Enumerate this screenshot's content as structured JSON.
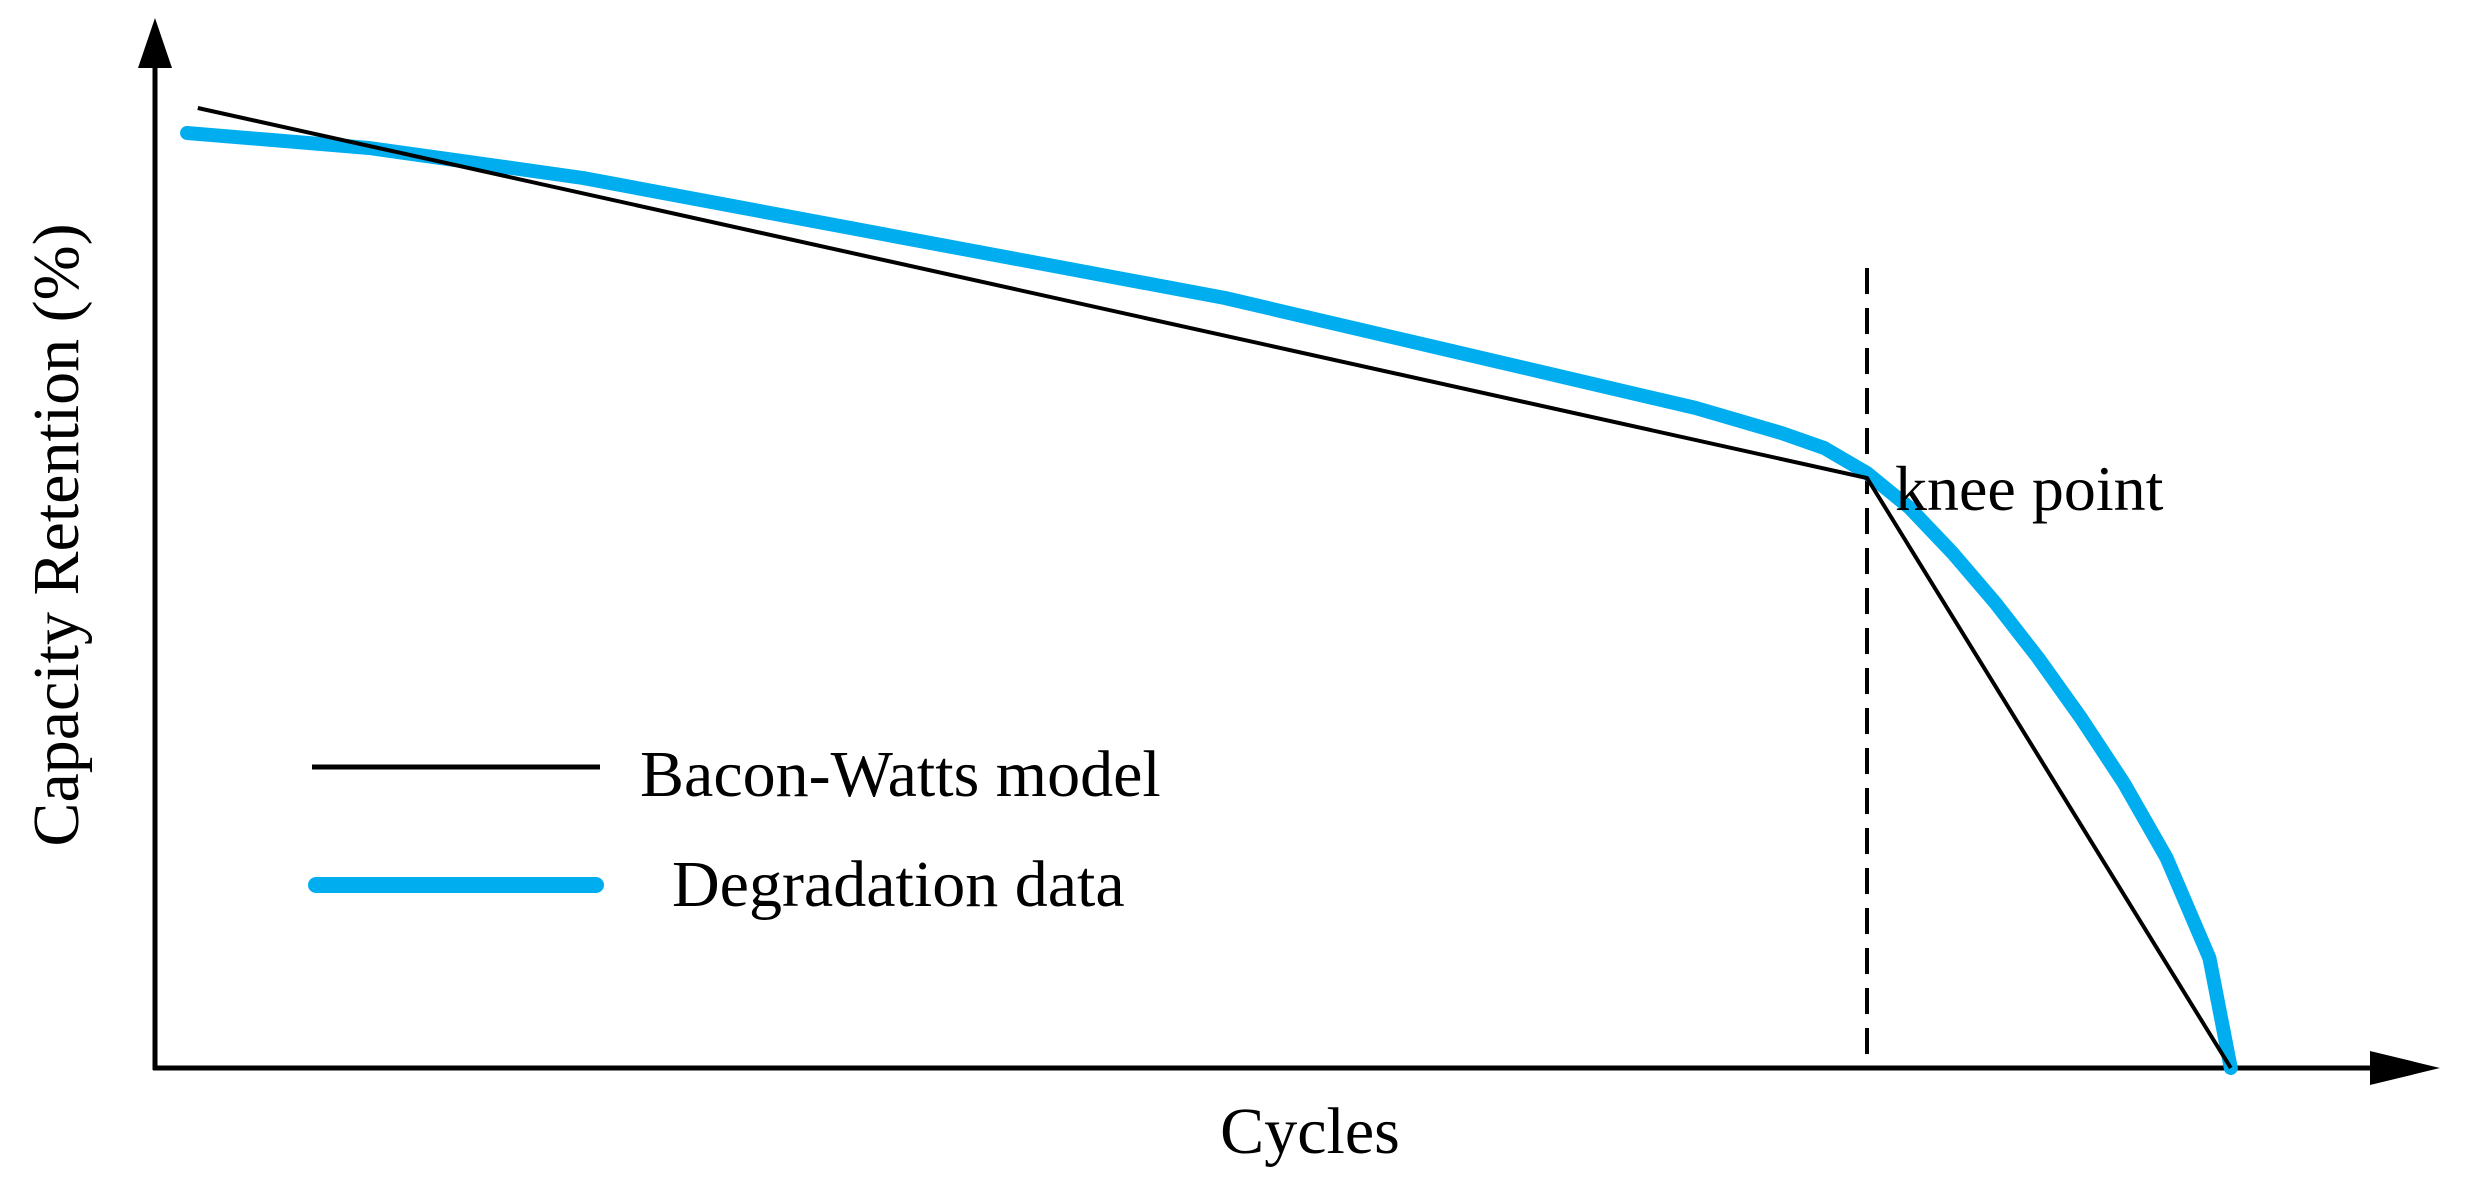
{
  "chart_data": {
    "type": "line",
    "title": "",
    "xlabel": "Cycles",
    "ylabel": "Capacity Retention (%)",
    "xlim": [
      0,
      100
    ],
    "ylim": [
      0,
      100
    ],
    "grid": false,
    "ticks": false,
    "legend_position": "bottom-left",
    "colors": {
      "model": "#000000",
      "data": "#00aeef",
      "axis": "#000000"
    },
    "series": [
      {
        "name": "Bacon-Watts model",
        "key": "model",
        "x": [
          2,
          80,
          97
        ],
        "y": [
          96,
          59,
          0
        ]
      },
      {
        "name": "Degradation data",
        "key": "data",
        "x": [
          1.5,
          10,
          20,
          30,
          40,
          50,
          60,
          66,
          72,
          76,
          78,
          80,
          82,
          84,
          86,
          88,
          90,
          92,
          94,
          96,
          97
        ],
        "y": [
          93.5,
          92,
          89,
          85,
          81,
          77,
          72,
          69,
          66,
          63.5,
          62,
          59.5,
          56,
          51.5,
          46.5,
          41,
          35,
          28.5,
          21,
          11,
          0
        ]
      }
    ],
    "annotations": [
      {
        "label": "knee point",
        "x": 80,
        "y_range": [
          0,
          80
        ],
        "style": "dashed-vertical"
      }
    ]
  }
}
